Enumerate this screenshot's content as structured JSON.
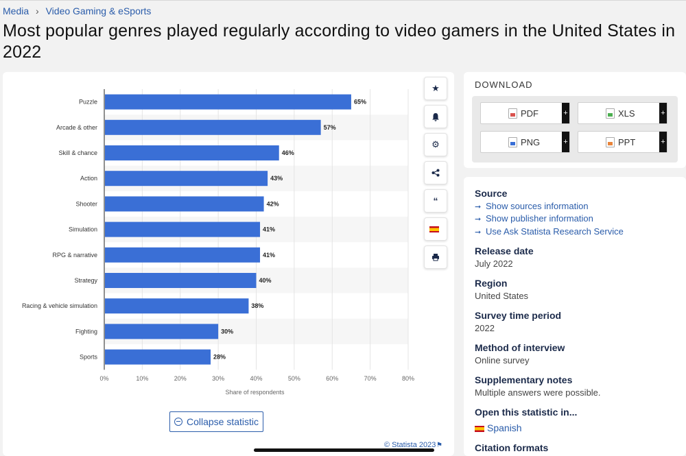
{
  "breadcrumb": [
    "Media",
    "Video Gaming & eSports"
  ],
  "page_title": "Most popular genres played regularly according to video gamers in the United States in 2022",
  "chart_data": {
    "type": "bar",
    "orientation": "horizontal",
    "categories": [
      "Puzzle",
      "Arcade & other",
      "Skill & chance",
      "Action",
      "Shooter",
      "Simulation",
      "RPG & narrative",
      "Strategy",
      "Racing & vehicle simulation",
      "Fighting",
      "Sports"
    ],
    "values": [
      65,
      57,
      46,
      43,
      42,
      41,
      41,
      40,
      38,
      30,
      28
    ],
    "value_labels": [
      "65%",
      "57%",
      "46%",
      "43%",
      "42%",
      "41%",
      "41%",
      "40%",
      "38%",
      "30%",
      "28%"
    ],
    "xlabel": "Share of respondents",
    "xlim": [
      0,
      80
    ],
    "xticks": [
      "0%",
      "10%",
      "20%",
      "30%",
      "40%",
      "50%",
      "60%",
      "70%",
      "80%"
    ],
    "bar_color": "#3a6fd6",
    "grid": true
  },
  "tools": [
    "star-icon",
    "bell-icon",
    "gear-icon",
    "share-icon",
    "quote-icon",
    "flag-spain-icon",
    "print-icon"
  ],
  "collapse_label": "Collapse statistic",
  "copyright": "© Statista 2023",
  "download": {
    "title": "DOWNLOAD",
    "buttons": [
      {
        "label": "PDF",
        "color": "#d9534f"
      },
      {
        "label": "XLS",
        "color": "#4caf50"
      },
      {
        "label": "PNG",
        "color": "#3a6fd6"
      },
      {
        "label": "PPT",
        "color": "#e8833a"
      }
    ],
    "plus": "+"
  },
  "info": {
    "source_h": "Source",
    "links": [
      "Show sources information",
      "Show publisher information",
      "Use Ask Statista Research Service"
    ],
    "release_h": "Release date",
    "release_v": "July 2022",
    "region_h": "Region",
    "region_v": "United States",
    "period_h": "Survey time period",
    "period_v": "2022",
    "method_h": "Method of interview",
    "method_v": "Online survey",
    "notes_h": "Supplementary notes",
    "notes_v": "Multiple answers were possible.",
    "open_h": "Open this statistic in...",
    "open_v": "Spanish",
    "citation_h": "Citation formats"
  }
}
